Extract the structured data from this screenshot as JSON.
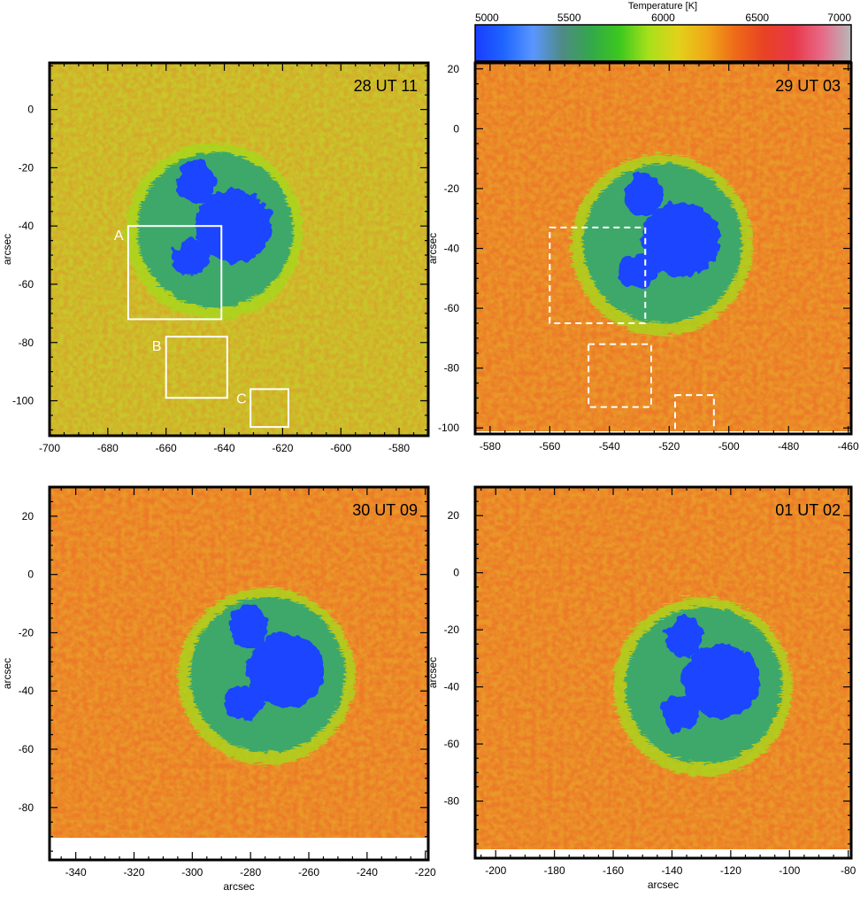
{
  "colorbar": {
    "title": "Temperature [K]",
    "min": 5000,
    "max": 7000,
    "ticks": [
      "5000",
      "5500",
      "6000",
      "6500",
      "7000"
    ],
    "stops": [
      "#1a3cff",
      "#1f66ff",
      "#5a96ff",
      "#4f8a86",
      "#33a84a",
      "#3cc81e",
      "#a8e01a",
      "#e2d21a",
      "#f0a818",
      "#ee6a18",
      "#e84224",
      "#e83848",
      "#e86a88",
      "#b8b8b8"
    ]
  },
  "colors": {
    "penumbra": "#3da86a",
    "umbra": "#1a44ff",
    "photosphere_warm": "#ec7a28",
    "photosphere_mid": "#c8c82a",
    "annotation_box": "#ffffff"
  },
  "panels": [
    {
      "id": "p1",
      "label": "28 UT 11",
      "xlim": [
        -700,
        -570
      ],
      "ylim": [
        -112,
        16
      ],
      "xticks": [
        "-700",
        "-680",
        "-660",
        "-640",
        "-620",
        "-600",
        "-580"
      ],
      "yticks": [
        "0",
        "-20",
        "-40",
        "-60",
        "-80",
        "-100"
      ],
      "xlabel": "",
      "ylabel": "arcsec",
      "photosphere": "cool",
      "spot_center": [
        -643,
        -40
      ],
      "boxes": [
        {
          "label": "A",
          "x": [
            -673,
            -641
          ],
          "y": [
            -72,
            -40
          ],
          "style": "solid"
        },
        {
          "label": "B",
          "x": [
            -660,
            -639
          ],
          "y": [
            -99,
            -78
          ],
          "style": "solid"
        },
        {
          "label": "C",
          "x": [
            -631,
            -618
          ],
          "y": [
            -109,
            -96
          ],
          "style": "solid"
        }
      ]
    },
    {
      "id": "p2",
      "label": "29 UT 03",
      "xlim": [
        -585,
        -459
      ],
      "ylim": [
        -102,
        22
      ],
      "xticks": [
        "-580",
        "-560",
        "-540",
        "-520",
        "-500",
        "-480",
        "-460"
      ],
      "yticks": [
        "20",
        "0",
        "-20",
        "-40",
        "-60",
        "-80",
        "-100"
      ],
      "xlabel": "",
      "ylabel": "arcsec",
      "photosphere": "warm",
      "spot_center": [
        -522,
        -37
      ],
      "boxes": [
        {
          "label": "",
          "x": [
            -560,
            -528
          ],
          "y": [
            -65,
            -33
          ],
          "style": "dashed"
        },
        {
          "label": "",
          "x": [
            -547,
            -526
          ],
          "y": [
            -93,
            -72
          ],
          "style": "dashed"
        },
        {
          "label": "",
          "x": [
            -518,
            -505
          ],
          "y": [
            -103,
            -89
          ],
          "style": "dashed"
        }
      ]
    },
    {
      "id": "p3",
      "label": "30 UT 09",
      "xlim": [
        -349,
        -219
      ],
      "ylim": [
        -98,
        30
      ],
      "xticks": [
        "-340",
        "-320",
        "-300",
        "-280",
        "-260",
        "-240",
        "-220"
      ],
      "yticks": [
        "20",
        "0",
        "-20",
        "-40",
        "-60",
        "-80"
      ],
      "xlabel": "arcsec",
      "ylabel": "arcsec",
      "photosphere": "warm",
      "spot_center": [
        -274,
        -33
      ],
      "boxes": []
    },
    {
      "id": "p4",
      "label": "01 UT 02",
      "xlim": [
        -207,
        -79
      ],
      "ylim": [
        -100,
        30
      ],
      "xticks": [
        "-200",
        "-180",
        "-160",
        "-140",
        "-120",
        "-100",
        "-80"
      ],
      "yticks": [
        "20",
        "0",
        "-20",
        "-40",
        "-60",
        "-80"
      ],
      "xlabel": "arcsec",
      "ylabel": "arcsec",
      "photosphere": "warm",
      "spot_center": [
        -129,
        -38
      ],
      "boxes": []
    }
  ]
}
